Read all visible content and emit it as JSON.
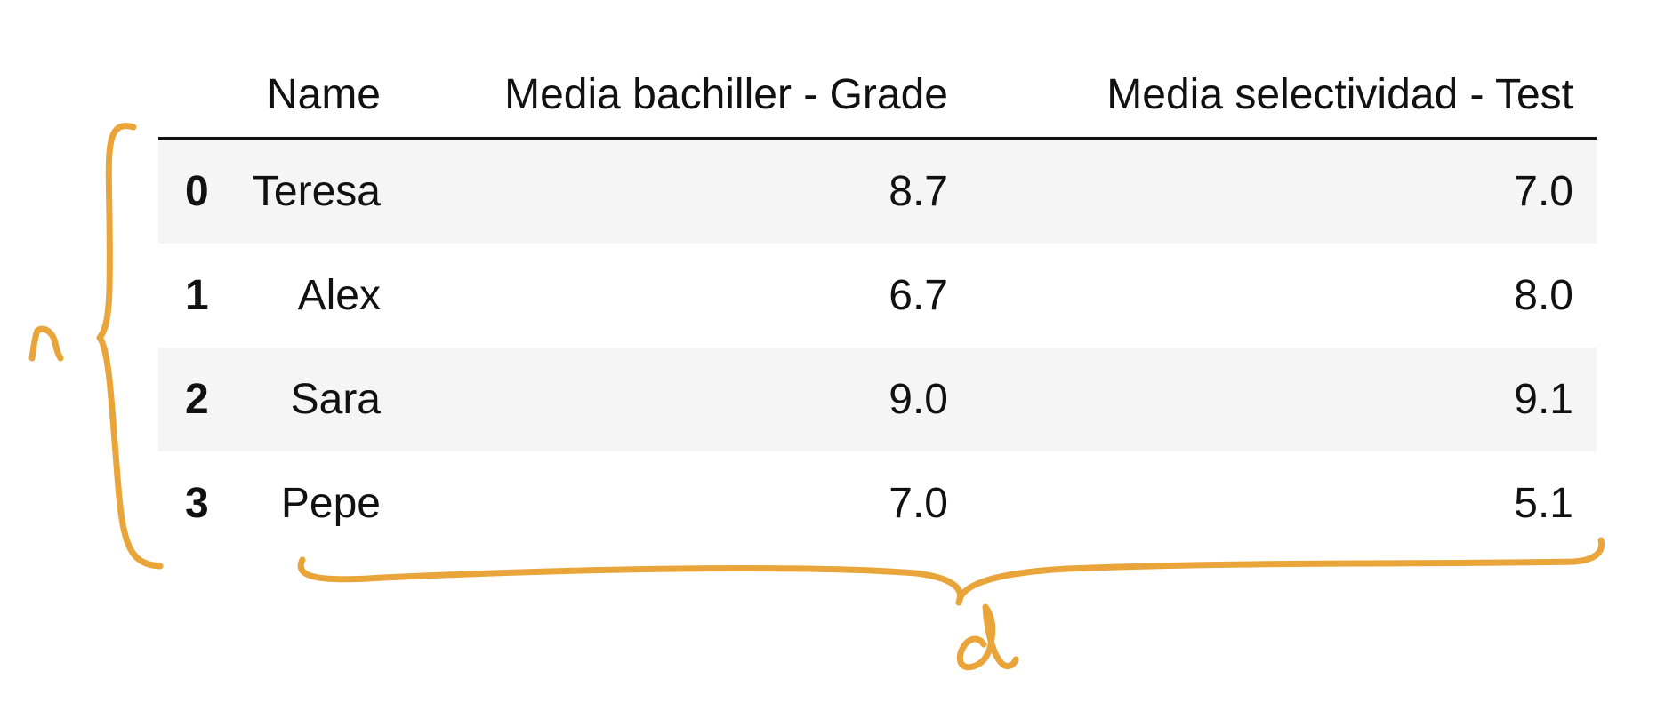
{
  "table": {
    "columns": [
      "",
      "Name",
      "Media bachiller - Grade",
      "Media selectividad - Test"
    ],
    "rows": [
      {
        "index": "0",
        "name": "Teresa",
        "grade": "8.7",
        "test": "7.0"
      },
      {
        "index": "1",
        "name": "Alex",
        "grade": "6.7",
        "test": "8.0"
      },
      {
        "index": "2",
        "name": "Sara",
        "grade": "9.0",
        "test": "9.1"
      },
      {
        "index": "3",
        "name": "Pepe",
        "grade": "7.0",
        "test": "5.1"
      }
    ]
  },
  "annotations": {
    "accent_color": "#e9a43a",
    "rows_label": "n",
    "columns_label": "d"
  }
}
